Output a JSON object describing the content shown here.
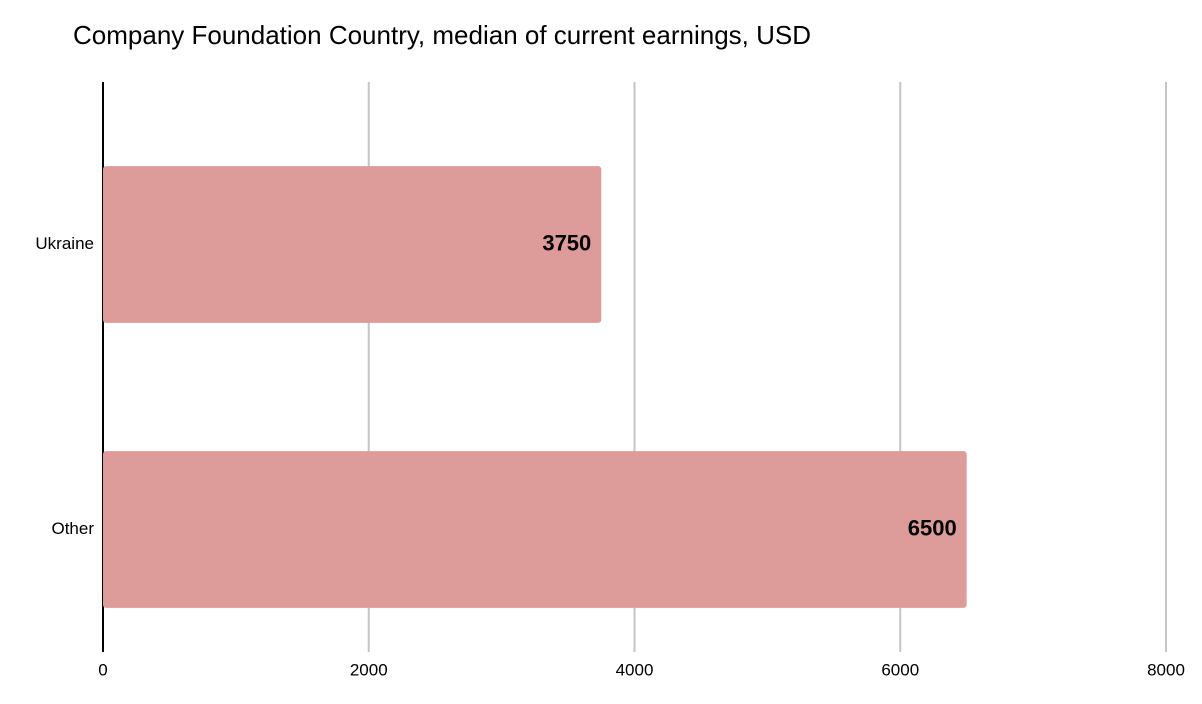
{
  "chart_data": {
    "type": "bar",
    "orientation": "horizontal",
    "title": "Company Foundation Country, median of current earnings, USD",
    "categories": [
      "Ukraine",
      "Other"
    ],
    "values": [
      3750,
      6500
    ],
    "color": "#dd9c99",
    "xlim": [
      0,
      8000
    ],
    "xticks": [
      0,
      2000,
      4000,
      6000,
      8000
    ],
    "grid": true,
    "data_labels": true
  }
}
